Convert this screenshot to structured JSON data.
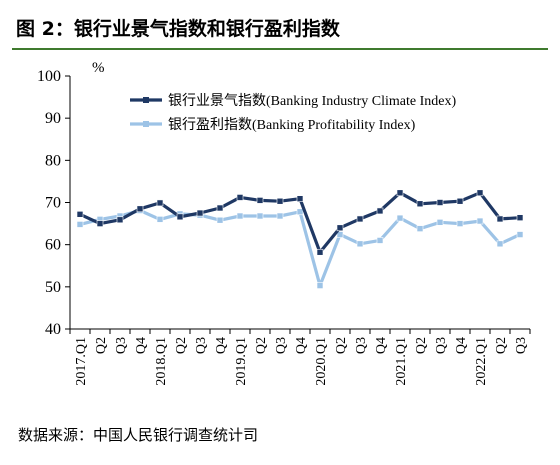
{
  "figure": {
    "title": "图 2：银行业景气指数和银行盈利指数",
    "source": "数据来源：中国人民银行调查统计司",
    "accent_color": "#3f7a2e"
  },
  "chart_data": {
    "type": "line",
    "ylabel": "%",
    "ylim": [
      40,
      100
    ],
    "yticks": [
      40,
      50,
      60,
      70,
      80,
      90,
      100
    ],
    "grid": false,
    "legend_position": "top-center",
    "x": [
      "2017.Q1",
      "Q2",
      "Q3",
      "Q4",
      "2018.Q1",
      "Q2",
      "Q3",
      "Q4",
      "2019.Q1",
      "Q2",
      "Q3",
      "Q4",
      "2020.Q1",
      "Q2",
      "Q3",
      "Q4",
      "2021.Q1",
      "Q2",
      "Q3",
      "Q4",
      "2022.Q1",
      "Q2",
      "Q3"
    ],
    "series": [
      {
        "name": "银行业景气指数(Banking Industry Climate Index)",
        "color": "#1f3864",
        "marker": "square",
        "values": [
          67.2,
          65.0,
          65.9,
          68.5,
          69.9,
          66.6,
          67.5,
          68.7,
          71.2,
          70.5,
          70.3,
          70.9,
          58.2,
          64.0,
          66.1,
          68.0,
          72.3,
          69.7,
          70.0,
          70.3,
          72.3,
          66.1,
          66.4
        ]
      },
      {
        "name": "银行盈利指数(Banking Profitability Index)",
        "color": "#9dc3e6",
        "marker": "square",
        "values": [
          64.8,
          66.0,
          66.8,
          68.1,
          66.0,
          67.3,
          67.0,
          65.8,
          66.8,
          66.8,
          66.8,
          67.8,
          50.3,
          62.4,
          60.2,
          61.0,
          66.3,
          63.8,
          65.3,
          65.0,
          65.6,
          60.2,
          62.4
        ]
      }
    ]
  }
}
